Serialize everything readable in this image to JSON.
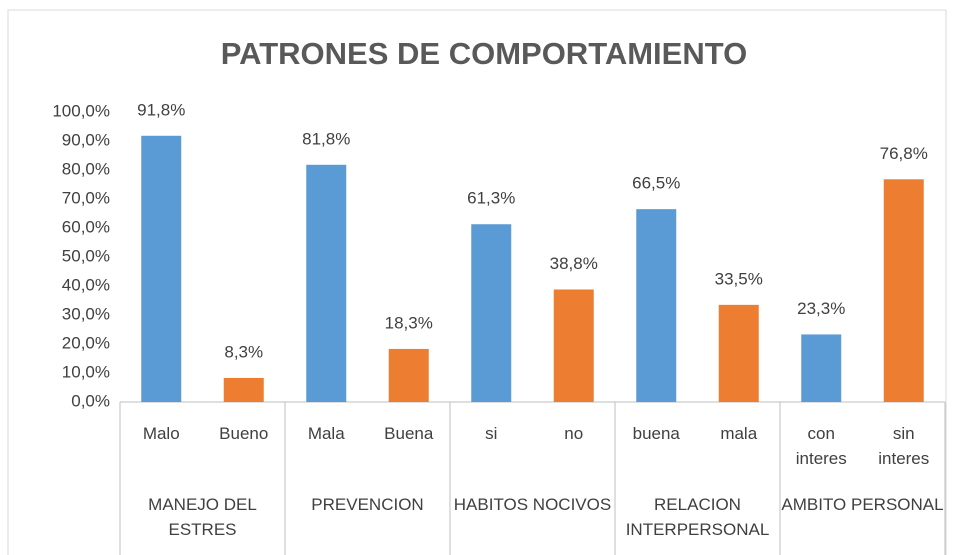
{
  "chart_data": {
    "type": "bar",
    "title": "PATRONES DE COMPORTAMIENTO",
    "groups": [
      "MANEJO DEL ESTRES",
      "PREVENCION",
      "HABITOS NOCIVOS",
      "RELACION INTERPERSONAL",
      "AMBITO PERSONAL"
    ],
    "categories": [
      "Malo",
      "Bueno",
      "Mala",
      "Buena",
      "si",
      "no",
      "buena",
      "mala",
      "con interes",
      "sin interes"
    ],
    "values": [
      91.8,
      8.3,
      81.8,
      18.3,
      61.3,
      38.8,
      66.5,
      33.5,
      23.3,
      76.8
    ],
    "value_labels": [
      "91,8%",
      "8,3%",
      "81,8%",
      "18,3%",
      "61,3%",
      "38,8%",
      "66,5%",
      "33,5%",
      "23,3%",
      "76,8%"
    ],
    "colors": [
      "#5b9bd5",
      "#ed7d31",
      "#5b9bd5",
      "#ed7d31",
      "#5b9bd5",
      "#ed7d31",
      "#5b9bd5",
      "#ed7d31",
      "#5b9bd5",
      "#ed7d31"
    ],
    "ylim": [
      0,
      100
    ],
    "yticks": [
      {
        "value": 0,
        "label": "0,0%"
      },
      {
        "value": 10,
        "label": "10,0%"
      },
      {
        "value": 20,
        "label": "20,0%"
      },
      {
        "value": 30,
        "label": "30,0%"
      },
      {
        "value": 40,
        "label": "40,0%"
      },
      {
        "value": 50,
        "label": "50,0%"
      },
      {
        "value": 60,
        "label": "60,0%"
      },
      {
        "value": 70,
        "label": "70,0%"
      },
      {
        "value": 80,
        "label": "80,0%"
      },
      {
        "value": 90,
        "label": "90,0%"
      },
      {
        "value": 100,
        "label": "100,0%"
      }
    ],
    "grid": false
  }
}
